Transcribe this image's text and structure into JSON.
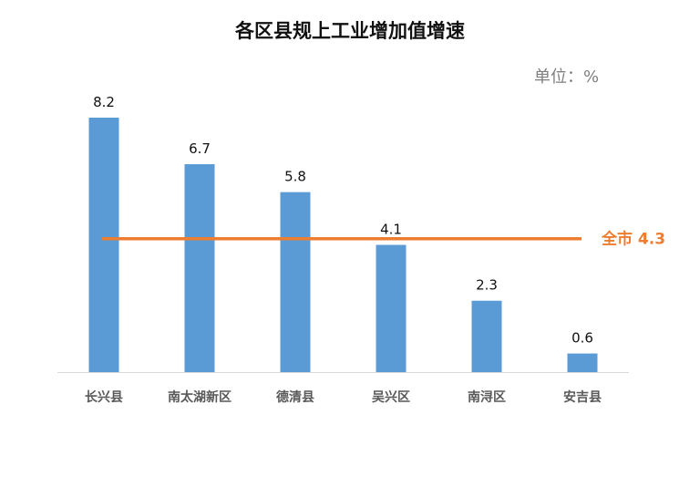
{
  "chart_data": {
    "type": "bar",
    "title": "各区县规上工业增加值增速",
    "unit_label": "单位：%",
    "categories": [
      "长兴县",
      "南太湖新区",
      "德清县",
      "吴兴区",
      "南浔区",
      "安吉县"
    ],
    "values": [
      8.2,
      6.7,
      5.8,
      4.1,
      2.3,
      0.6
    ],
    "value_labels": [
      "8.2",
      "6.7",
      "5.8",
      "4.1",
      "2.3",
      "0.6"
    ],
    "ylim": [
      0,
      8.2
    ],
    "grid": false,
    "legend": "none",
    "reference_line": {
      "name": "全市",
      "value": 4.3,
      "label": "全市 4.3"
    },
    "colors": {
      "bar": "#5b9bd5",
      "reference": "#ed7d31",
      "axis": "#d9d9d9"
    }
  }
}
